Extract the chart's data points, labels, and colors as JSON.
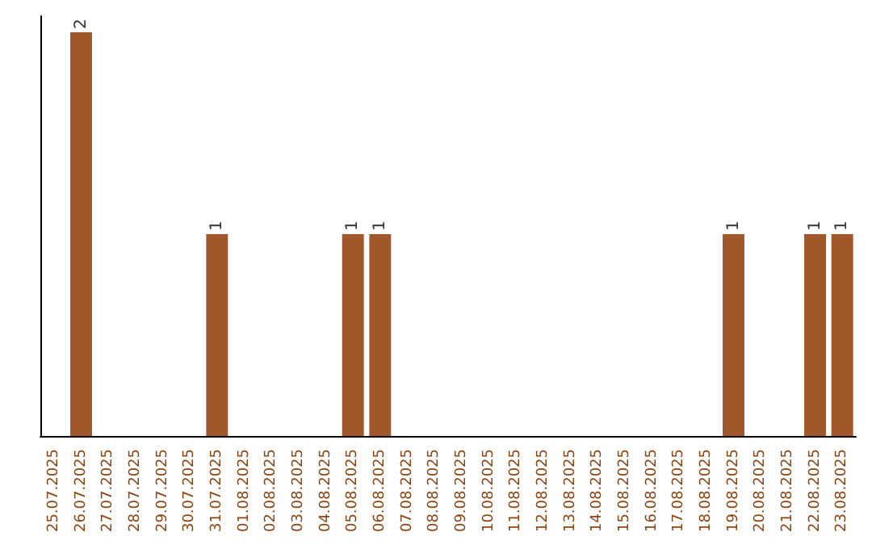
{
  "chart_data": {
    "type": "bar",
    "categories": [
      "25.07.2025",
      "26.07.2025",
      "27.07.2025",
      "28.07.2025",
      "29.07.2025",
      "30.07.2025",
      "31.07.2025",
      "01.08.2025",
      "02.08.2025",
      "03.08.2025",
      "04.08.2025",
      "05.08.2025",
      "06.08.2025",
      "07.08.2025",
      "08.08.2025",
      "09.08.2025",
      "10.08.2025",
      "11.08.2025",
      "12.08.2025",
      "13.08.2025",
      "14.08.2025",
      "15.08.2025",
      "16.08.2025",
      "17.08.2025",
      "18.08.2025",
      "19.08.2025",
      "20.08.2025",
      "21.08.2025",
      "22.08.2025",
      "23.08.2025"
    ],
    "values": [
      0,
      2,
      0,
      0,
      0,
      0,
      1,
      0,
      0,
      0,
      0,
      1,
      1,
      0,
      0,
      0,
      0,
      0,
      0,
      0,
      0,
      0,
      0,
      0,
      0,
      1,
      0,
      0,
      1,
      1
    ],
    "value_labels": [
      null,
      "2",
      null,
      null,
      null,
      null,
      "1",
      null,
      null,
      null,
      null,
      "1",
      "1",
      null,
      null,
      null,
      null,
      null,
      null,
      null,
      null,
      null,
      null,
      null,
      null,
      "1",
      null,
      null,
      "1",
      "1"
    ],
    "color": "#a0582a",
    "tick_labels": "x"
  }
}
